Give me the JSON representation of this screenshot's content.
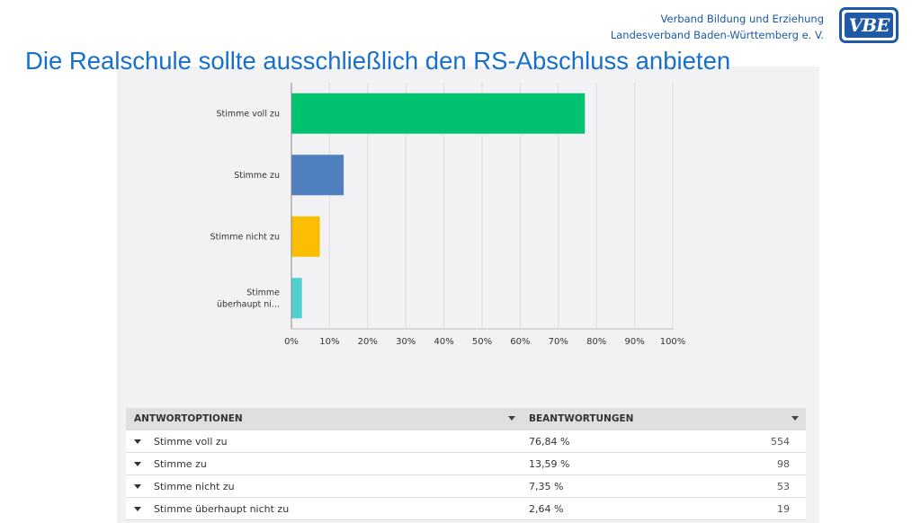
{
  "header": {
    "org_line1": "Verband Bildung und Erziehung",
    "org_line2": "Landesverband Baden-Württemberg e. V.",
    "logo_text": "VBE"
  },
  "slide_title": "Die Realschule sollte ausschließlich den RS-Abschluss anbieten",
  "chart_data": {
    "type": "bar",
    "orientation": "horizontal",
    "categories": [
      "Stimme voll zu",
      "Stimme zu",
      "Stimme nicht zu",
      "Stimme überhaupt ni..."
    ],
    "values": [
      76.84,
      13.59,
      7.35,
      2.64
    ],
    "colors": [
      "#00c26f",
      "#4f7fbf",
      "#fcbe00",
      "#4fcfcf"
    ],
    "xlim": [
      0,
      100
    ],
    "ticks": [
      "0%",
      "10%",
      "20%",
      "30%",
      "40%",
      "50%",
      "60%",
      "70%",
      "80%",
      "90%",
      "100%"
    ],
    "grid": true
  },
  "table": {
    "headers": [
      "ANTWORTOPTIONEN",
      "BEANTWORTUNGEN"
    ],
    "rows": [
      {
        "label": "Stimme voll zu",
        "percent": "76,84 %",
        "count": "554"
      },
      {
        "label": "Stimme zu",
        "percent": "13,59 %",
        "count": "98"
      },
      {
        "label": "Stimme nicht zu",
        "percent": "7,35 %",
        "count": "53"
      },
      {
        "label": "Stimme überhaupt nicht zu",
        "percent": "2,64 %",
        "count": "19"
      }
    ]
  }
}
